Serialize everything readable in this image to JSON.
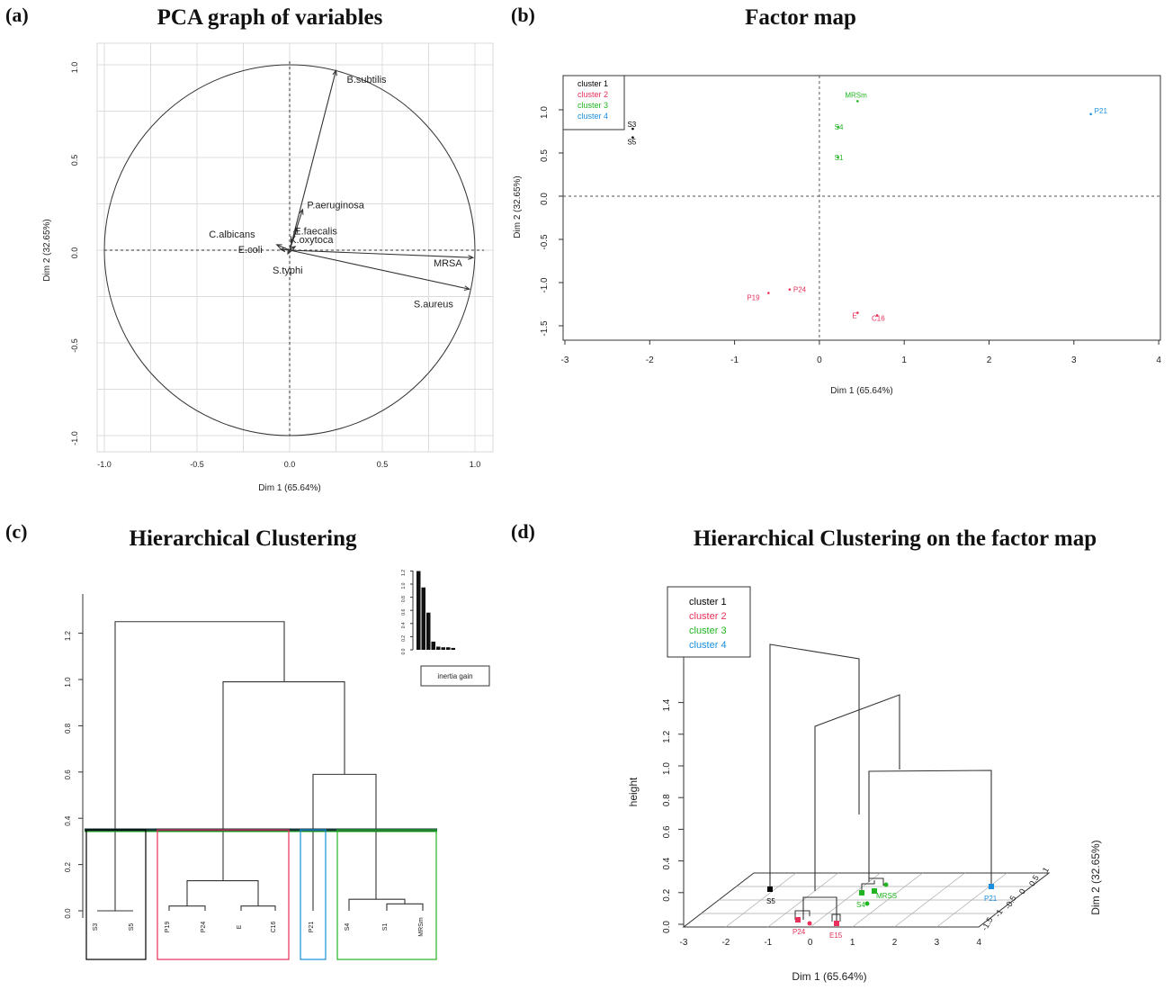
{
  "panels": {
    "a": {
      "label": "(a)",
      "title": "PCA graph of variables"
    },
    "b": {
      "label": "(b)",
      "title": "Factor map"
    },
    "c": {
      "label": "(c)",
      "title": "Hierarchical Clustering"
    },
    "d": {
      "label": "(d)",
      "title": "Hierarchical Clustering on the factor map"
    }
  },
  "colors": {
    "cluster1": "#000000",
    "cluster2": "#e8305a",
    "cluster3": "#22b522",
    "cluster4": "#1a8fe0",
    "grid": "#dcdcdc"
  },
  "chart_data": [
    {
      "id": "pca_variables",
      "type": "scatter",
      "title": "PCA graph of variables",
      "xlabel": "Dim 1 (65.64%)",
      "ylabel": "Dim 2 (32.65%)",
      "xlim": [
        -1.0,
        1.0
      ],
      "ylim": [
        -1.0,
        1.0
      ],
      "xticks": [
        "-1.0",
        "-0.5",
        "0.0",
        "0.5",
        "1.0"
      ],
      "yticks": [
        "-1.0",
        "-0.5",
        "0.0",
        "0.5",
        "1.0"
      ],
      "grid": true,
      "unit_circle": true,
      "vectors": [
        {
          "name": "B.subtilis",
          "x": 0.25,
          "y": 0.97
        },
        {
          "name": "P.aeruginosa",
          "x": 0.07,
          "y": 0.22
        },
        {
          "name": "E.faecalis",
          "x": 0.04,
          "y": 0.12
        },
        {
          "name": "C.albicans",
          "x": -0.07,
          "y": 0.03
        },
        {
          "name": "E.coli",
          "x": -0.05,
          "y": 0.005
        },
        {
          "name": "K.oxytoca",
          "x": 0.03,
          "y": 0.02
        },
        {
          "name": "S.typhi",
          "x": -0.01,
          "y": -0.02
        },
        {
          "name": "MRSA",
          "x": 0.99,
          "y": -0.04
        },
        {
          "name": "S.aureus",
          "x": 0.97,
          "y": -0.21
        }
      ]
    },
    {
      "id": "factor_map",
      "type": "scatter",
      "title": "Factor map",
      "xlabel": "Dim 1 (65.64%)",
      "ylabel": "Dim 2 (32.65%)",
      "xlim": [
        -3,
        4
      ],
      "ylim": [
        -1.6,
        1.4
      ],
      "xticks": [
        "-3",
        "-2",
        "-1",
        "0",
        "1",
        "2",
        "3",
        "4"
      ],
      "yticks": [
        "-1.5",
        "-1.0",
        "-0.5",
        "0.0",
        "0.5",
        "1.0"
      ],
      "legend": {
        "placement": "top-left",
        "entries": [
          "cluster 1",
          "cluster 2",
          "cluster 3",
          "cluster 4"
        ]
      },
      "points": [
        {
          "label": "S3",
          "x": -2.2,
          "y": 0.78,
          "cluster": 1
        },
        {
          "label": "S5",
          "x": -2.2,
          "y": 0.68,
          "cluster": 1
        },
        {
          "label": "MRSm",
          "x": 0.45,
          "y": 1.1,
          "cluster": 3
        },
        {
          "label": "S4",
          "x": 0.22,
          "y": 0.8,
          "cluster": 3
        },
        {
          "label": "S1",
          "x": 0.22,
          "y": 0.45,
          "cluster": 3
        },
        {
          "label": "P21",
          "x": 3.2,
          "y": 0.95,
          "cluster": 4
        },
        {
          "label": "P19",
          "x": -0.6,
          "y": -1.12,
          "cluster": 2
        },
        {
          "label": "P24",
          "x": -0.35,
          "y": -1.08,
          "cluster": 2
        },
        {
          "label": "E",
          "x": 0.45,
          "y": -1.35,
          "cluster": 2
        },
        {
          "label": "C16",
          "x": 0.68,
          "y": -1.38,
          "cluster": 2
        }
      ]
    },
    {
      "id": "dendrogram",
      "type": "dendrogram",
      "title": "Hierarchical Clustering",
      "ylim": [
        0,
        1.3
      ],
      "yticks": [
        "0.0",
        "0.2",
        "0.4",
        "0.6",
        "0.8",
        "1.0",
        "1.2"
      ],
      "leaves": [
        "S3",
        "S5",
        "P19",
        "P24",
        "E",
        "C16",
        "P21",
        "S4",
        "S1",
        "MRSm"
      ],
      "merges": [
        {
          "a": "S3",
          "b": "S5",
          "height": 0.0
        },
        {
          "a": "P19",
          "b": "P24",
          "height": 0.04
        },
        {
          "a": "E",
          "b": "C16",
          "height": 0.04
        },
        {
          "a": "P19+P24",
          "b": "E+C16",
          "height": 0.13
        },
        {
          "a": "S1",
          "b": "MRSm",
          "height": 0.03
        },
        {
          "a": "S4",
          "b": "S1+MRSm",
          "height": 0.05
        },
        {
          "a": "P21",
          "b": "S4+S1+MRSm",
          "height": 0.59
        },
        {
          "a": "cluster2",
          "b": "cluster3+4",
          "height": 0.99
        },
        {
          "a": "cluster1",
          "b": "rest",
          "height": 1.25
        }
      ],
      "cut_height": 0.35,
      "inertia_gain": {
        "label": "inertia gain",
        "yticks": [
          "0.0",
          "0.2",
          "0.4",
          "0.6",
          "0.8",
          "1.0",
          "1.2"
        ],
        "values": [
          1.25,
          0.99,
          0.59,
          0.13,
          0.05,
          0.04,
          0.04,
          0.03,
          0.0
        ]
      }
    },
    {
      "id": "dendrogram_3d",
      "type": "dendrogram",
      "title": "Hierarchical Clustering on the factor map",
      "xlabel": "Dim 1 (65.64%)",
      "ylabel": "Dim 2 (32.65%)",
      "zlabel": "height",
      "xticks": [
        "-3",
        "-2",
        "-1",
        "0",
        "1",
        "2",
        "3",
        "4"
      ],
      "zticks": [
        "0.0",
        "0.2",
        "0.4",
        "0.6",
        "0.8",
        "1.0",
        "1.2",
        "1.4"
      ],
      "legend": {
        "placement": "top-left",
        "entries": [
          "cluster 1",
          "cluster 2",
          "cluster 3",
          "cluster 4"
        ]
      },
      "point_labels": [
        "S5",
        "P24",
        "E15",
        "S4",
        "MRSS",
        "P21"
      ]
    }
  ]
}
